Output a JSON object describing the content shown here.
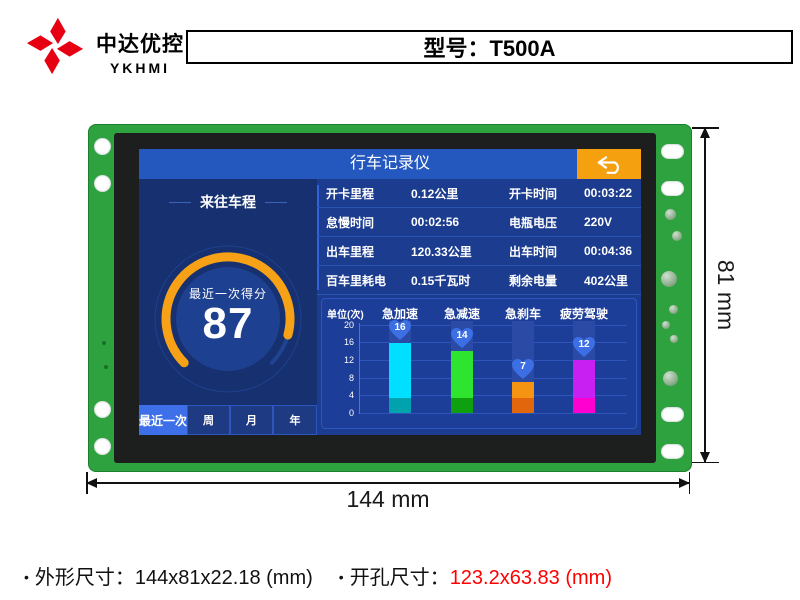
{
  "brand": {
    "company": "中达优控",
    "abbr": "YKHMI",
    "logo_color": "#e60012"
  },
  "header": {
    "model_label": "型号：T500A"
  },
  "screen": {
    "title": "行车记录仪",
    "back_button": "undo-arrow",
    "left": {
      "section_title": "来往车程",
      "gauge": {
        "label": "最近一次得分",
        "score": "87",
        "arc_color": "#f7a216",
        "max": 100
      },
      "tabs": [
        {
          "label": "最近一次",
          "active": true
        },
        {
          "label": "周",
          "active": false
        },
        {
          "label": "月",
          "active": false
        },
        {
          "label": "年",
          "active": false
        }
      ]
    },
    "table": {
      "rows": [
        [
          "开卡里程",
          "0.12公里",
          "开卡时间",
          "00:03:22"
        ],
        [
          "怠慢时间",
          "00:02:56",
          "电瓶电压",
          "220V"
        ],
        [
          "出车里程",
          "120.33公里",
          "出车时间",
          "00:04:36"
        ],
        [
          "百车里耗电",
          "0.15千瓦时",
          "剩余电量",
          "402公里"
        ]
      ]
    }
  },
  "chart_data": {
    "type": "bar",
    "title": "",
    "unit_label": "单位(次)",
    "categories": [
      "急加速",
      "急减速",
      "急刹车",
      "疲劳驾驶"
    ],
    "values": [
      16,
      14,
      7,
      12
    ],
    "yticks": [
      0,
      4,
      8,
      12,
      16,
      20
    ],
    "ylim": [
      0,
      20
    ],
    "grid": true,
    "badge_shape": "heart",
    "badge_color": "#3b6fe3",
    "bar_colors": [
      "#00dfff",
      "#2ee42e",
      "#f59313",
      "#c81ff2"
    ],
    "bar_base_colors": [
      "#00a3ad",
      "#0fa00f",
      "#e2660c",
      "#ff00d0"
    ],
    "track_color": "#2a4aa6"
  },
  "dimensions": {
    "height_label": "81 mm",
    "width_label": "144 mm"
  },
  "footer": {
    "bullet": "•",
    "outline_label": "外形尺寸：",
    "outline_value": "144x81x22.18 (mm)",
    "cutout_label": "开孔尺寸：",
    "cutout_value": "123.2x63.83 (mm)"
  }
}
